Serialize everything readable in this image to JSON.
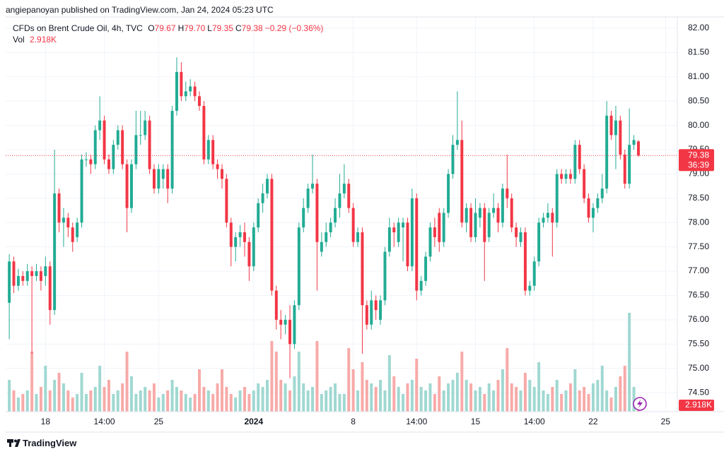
{
  "header": {
    "publisher": "angiepanoyan published on TradingView.com, Jan 24, 2024 05:23 UTC"
  },
  "chart_data": {
    "type": "candlestick",
    "symbol": "CFDs on Brent Crude Oil, 4h, TVC",
    "legend": [
      {
        "label": "O",
        "value": "79.67"
      },
      {
        "label": "H",
        "value": "79.70"
      },
      {
        "label": "L",
        "value": "79.35"
      },
      {
        "label": "C",
        "value": "79.38"
      }
    ],
    "change": "−0.29 (−0.36%)",
    "volume_title": "Vol",
    "volume_label": "2.918K",
    "countdown": "36:39",
    "up_color": "#22ab94",
    "down_color": "#f23645",
    "up_volume_color": "#9fd8d1",
    "down_volume_color": "#f7aaa8",
    "open": [
      76.35,
      77.2,
      76.7,
      76.9,
      76.8,
      77.0,
      76.9,
      77.0,
      76.9,
      77.1,
      76.2,
      78.6,
      78.0,
      78.1,
      77.9,
      77.7,
      78.0,
      79.3,
      79.3,
      79.2,
      79.9,
      80.1,
      79.3,
      79.1,
      79.6,
      79.9,
      79.2,
      78.3,
      79.2,
      79.8,
      79.8,
      80.1,
      79.1,
      78.7,
      78.9,
      79.1,
      78.7,
      80.3,
      81.1,
      80.6,
      80.7,
      80.8,
      80.6,
      80.4,
      79.3,
      79.7,
      79.2,
      79.1,
      78.9,
      78.0,
      77.5,
      77.7,
      77.8,
      77.6,
      77.1,
      77.9,
      78.4,
      78.6,
      78.9,
      76.6,
      76.0,
      75.9,
      76.0,
      75.5,
      76.3,
      77.9,
      78.3,
      78.7,
      78.8,
      77.4,
      77.6,
      77.8,
      78.0,
      78.3,
      78.6,
      78.8,
      78.3,
      77.6,
      77.8,
      76.3,
      75.9,
      76.4,
      76.0,
      76.4,
      77.4,
      77.9,
      77.6,
      77.9,
      78.0,
      77.1,
      78.5,
      76.6,
      76.8,
      77.3,
      77.9,
      78.2,
      77.6,
      78.2,
      79.0,
      79.6,
      79.7,
      78.0,
      78.3,
      77.7,
      78.1,
      78.3,
      77.7,
      78.2,
      78.3,
      78.0,
      78.7,
      78.5,
      77.9,
      77.6,
      77.8,
      76.6,
      76.7,
      77.2,
      78.0,
      78.1,
      78.2,
      78.0,
      79.0,
      78.9,
      79.0,
      78.9,
      79.6,
      79.1,
      78.5,
      78.1,
      78.3,
      78.5,
      78.7,
      80.2,
      79.8,
      80.1,
      79.4,
      78.8,
      79.6,
      79.67
    ],
    "high": [
      77.35,
      77.3,
      77.05,
      77.0,
      77.15,
      77.1,
      77.15,
      77.1,
      77.3,
      77.2,
      79.5,
      78.7,
      78.3,
      78.2,
      78.0,
      78.1,
      79.4,
      79.45,
      79.4,
      80.0,
      80.6,
      80.2,
      79.4,
      79.7,
      80.0,
      80.0,
      79.3,
      79.3,
      80.3,
      80.3,
      80.3,
      80.2,
      79.2,
      79.2,
      79.2,
      79.2,
      80.4,
      81.4,
      81.3,
      80.9,
      80.95,
      80.9,
      80.7,
      80.5,
      79.8,
      79.8,
      79.3,
      79.2,
      79.0,
      78.1,
      77.8,
      77.95,
      78.0,
      77.7,
      78.0,
      78.5,
      78.8,
      79.0,
      79.0,
      76.7,
      76.2,
      76.1,
      76.3,
      76.4,
      78.0,
      78.5,
      78.8,
      79.4,
      78.9,
      77.8,
      78.0,
      78.1,
      78.5,
      79.0,
      79.2,
      78.9,
      78.4,
      77.9,
      77.9,
      76.4,
      76.6,
      76.5,
      76.5,
      77.5,
      78.1,
      78.0,
      78.1,
      78.1,
      78.1,
      78.7,
      78.6,
      76.9,
      77.4,
      78.0,
      78.1,
      78.3,
      78.3,
      79.1,
      79.8,
      80.7,
      80.1,
      78.4,
      78.4,
      78.5,
      78.4,
      78.4,
      78.3,
      78.6,
      78.4,
      78.8,
      79.4,
      78.6,
      78.0,
      77.9,
      77.9,
      76.8,
      77.3,
      78.1,
      78.2,
      78.4,
      78.3,
      79.1,
      79.1,
      79.1,
      79.1,
      79.7,
      79.7,
      79.2,
      78.6,
      78.4,
      78.6,
      79.0,
      80.5,
      80.3,
      80.4,
      80.2,
      79.5,
      80.35,
      79.8,
      79.7
    ],
    "low": [
      75.6,
      76.55,
      76.6,
      76.7,
      76.7,
      75.3,
      76.8,
      76.6,
      76.7,
      75.9,
      76.1,
      77.8,
      77.5,
      77.7,
      77.4,
      77.6,
      77.9,
      79.15,
      79.0,
      79.1,
      79.7,
      79.2,
      79.0,
      79.0,
      79.5,
      79.1,
      77.8,
      78.2,
      79.1,
      79.6,
      79.7,
      79.0,
      78.6,
      78.6,
      78.7,
      78.4,
      78.6,
      80.2,
      80.5,
      80.5,
      80.6,
      80.5,
      80.3,
      79.2,
      79.2,
      79.1,
      78.9,
      78.7,
      77.9,
      77.1,
      77.2,
      77.5,
      77.3,
      76.8,
      77.0,
      77.8,
      78.2,
      78.5,
      76.5,
      75.8,
      75.6,
      75.7,
      74.8,
      75.4,
      76.2,
      77.8,
      78.2,
      78.6,
      76.6,
      77.3,
      77.5,
      77.7,
      77.9,
      78.1,
      78.5,
      78.2,
      77.5,
      77.5,
      75.3,
      75.8,
      75.8,
      76.0,
      75.9,
      76.3,
      77.3,
      77.5,
      77.5,
      77.2,
      77.0,
      77.0,
      76.4,
      76.5,
      76.7,
      77.2,
      77.5,
      77.4,
      77.5,
      78.1,
      78.9,
      79.5,
      77.9,
      77.8,
      77.6,
      77.6,
      77.9,
      76.8,
      77.6,
      78.1,
      77.8,
      77.9,
      78.3,
      77.8,
      77.5,
      77.5,
      76.5,
      76.5,
      76.6,
      77.1,
      77.9,
      78.0,
      77.3,
      77.9,
      78.8,
      78.8,
      78.8,
      78.8,
      79.0,
      78.4,
      78.0,
      77.8,
      78.2,
      78.4,
      78.6,
      79.7,
      79.1,
      79.3,
      78.7,
      78.7,
      79.5,
      79.35
    ],
    "close": [
      77.2,
      76.7,
      76.9,
      76.8,
      77.0,
      76.9,
      77.0,
      76.8,
      77.1,
      76.2,
      78.6,
      78.0,
      78.1,
      77.9,
      77.6,
      78.0,
      79.3,
      79.3,
      79.2,
      79.9,
      80.1,
      79.3,
      79.1,
      79.6,
      79.9,
      79.2,
      78.3,
      79.2,
      79.8,
      79.8,
      80.1,
      79.1,
      78.7,
      79.1,
      79.1,
      78.7,
      80.3,
      81.1,
      80.6,
      80.7,
      80.8,
      80.6,
      80.4,
      79.3,
      79.7,
      79.2,
      79.1,
      78.9,
      78.0,
      77.5,
      77.7,
      77.8,
      77.6,
      77.1,
      77.9,
      78.4,
      78.6,
      78.9,
      76.6,
      76.0,
      75.9,
      76.0,
      75.5,
      76.3,
      77.9,
      78.3,
      78.7,
      78.8,
      77.6,
      77.6,
      77.8,
      78.0,
      78.3,
      78.6,
      78.8,
      78.3,
      77.6,
      77.8,
      76.3,
      75.9,
      76.4,
      76.2,
      76.4,
      77.4,
      77.9,
      77.8,
      78.0,
      78.0,
      77.1,
      78.5,
      76.6,
      76.8,
      77.3,
      77.9,
      77.7,
      77.6,
      78.2,
      79.0,
      79.6,
      79.7,
      78.0,
      78.3,
      77.7,
      78.2,
      78.3,
      77.6,
      78.2,
      78.3,
      78.0,
      78.7,
      78.5,
      77.9,
      77.7,
      77.8,
      76.6,
      76.7,
      77.2,
      78.0,
      78.1,
      78.2,
      78.0,
      79.0,
      78.9,
      79.0,
      78.9,
      79.6,
      79.1,
      78.5,
      78.1,
      78.3,
      78.5,
      78.7,
      80.2,
      79.8,
      80.1,
      79.4,
      78.8,
      79.6,
      79.7,
      79.38
    ],
    "volume": [
      9000,
      6000,
      4000,
      5000,
      6000,
      17000,
      5000,
      7000,
      13000,
      6000,
      9000,
      11000,
      8000,
      6000,
      4000,
      5000,
      11000,
      5000,
      6000,
      7000,
      13000,
      7000,
      9000,
      5000,
      6000,
      8000,
      17000,
      10000,
      5000,
      6000,
      7000,
      6000,
      8000,
      4000,
      5000,
      6000,
      9000,
      7000,
      6000,
      5000,
      4000,
      5000,
      12000,
      7000,
      6000,
      5000,
      8000,
      12000,
      7000,
      5000,
      4000,
      6000,
      7000,
      5000,
      6000,
      8000,
      7000,
      9000,
      20000,
      17000,
      9000,
      8000,
      6000,
      10000,
      17000,
      8000,
      6000,
      7000,
      20000,
      5000,
      6000,
      7000,
      8000,
      5000,
      5000,
      18000,
      12000,
      6000,
      14000,
      9000,
      8000,
      7000,
      9000,
      6000,
      16000,
      10000,
      7000,
      5000,
      8000,
      9000,
      15000,
      7000,
      6000,
      8000,
      5000,
      10000,
      6000,
      8000,
      9000,
      11000,
      17000,
      9000,
      8000,
      6000,
      7000,
      5000,
      8000,
      6000,
      9000,
      12000,
      18000,
      8000,
      7000,
      6000,
      11000,
      9000,
      7000,
      14000,
      6000,
      5000,
      7000,
      9000,
      5000,
      6000,
      8000,
      12000,
      6000,
      7000,
      5000,
      8000,
      9000,
      13000,
      6000,
      4000,
      7000,
      10000,
      13000,
      28000,
      7000,
      2918
    ],
    "xlim": [
      -0.8,
      147.6
    ],
    "xticks": [
      {
        "value": 8,
        "label": "18"
      },
      {
        "value": 21,
        "label": "14:00"
      },
      {
        "value": 33,
        "label": "25"
      },
      {
        "value": 54,
        "label": "2024"
      },
      {
        "value": 76,
        "label": "8"
      },
      {
        "value": 90,
        "label": "14:00"
      },
      {
        "value": 103,
        "label": "15"
      },
      {
        "value": 116,
        "label": "14:00"
      },
      {
        "value": 129,
        "label": "22"
      },
      {
        "value": 145,
        "label": "25"
      }
    ],
    "ylim": [
      74.11,
      82.58
    ],
    "yticks": [
      {
        "value": 74.5,
        "label": "74.50"
      },
      {
        "value": 75,
        "label": "75.00"
      },
      {
        "value": 75.5,
        "label": "75.50"
      },
      {
        "value": 76,
        "label": "76.00"
      },
      {
        "value": 76.5,
        "label": "76.50"
      },
      {
        "value": 77,
        "label": "77.00"
      },
      {
        "value": 77.5,
        "label": "77.50"
      },
      {
        "value": 78,
        "label": "78.00"
      },
      {
        "value": 78.5,
        "label": "78.50"
      },
      {
        "value": 79,
        "label": "79.00"
      },
      {
        "value": 79.5,
        "label": "79.50"
      },
      {
        "value": 80,
        "label": "80.00"
      },
      {
        "value": 80.5,
        "label": "80.50"
      },
      {
        "value": 81,
        "label": "81.00"
      },
      {
        "value": 81.5,
        "label": "81.50"
      },
      {
        "value": 82,
        "label": "82.00"
      }
    ],
    "y2lim": [
      0,
      40000
    ],
    "grid": true
  },
  "footer": {
    "brand": "TradingView"
  }
}
